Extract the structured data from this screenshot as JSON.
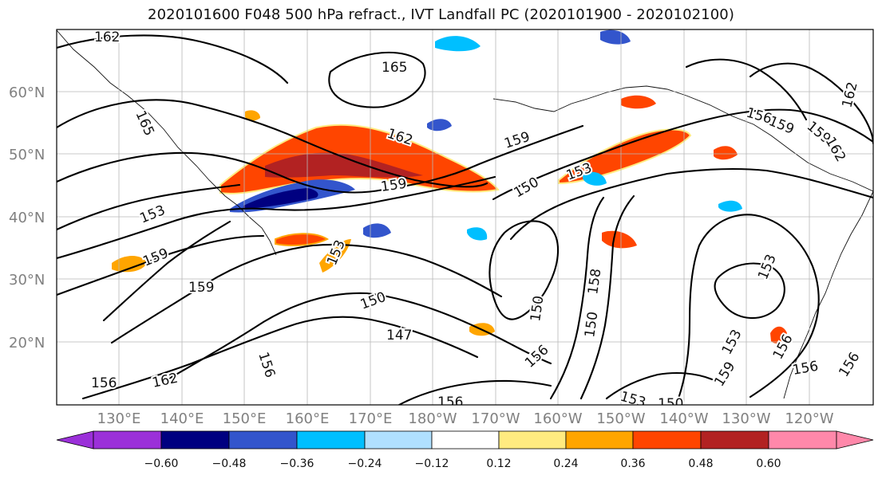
{
  "title": "2020101600 F048 500 hPa refract., IVT Landfall PC (2020101900 - 2020102100)",
  "map": {
    "lon_labels": [
      "130°E",
      "140°E",
      "150°E",
      "160°E",
      "170°E",
      "180°W",
      "170°W",
      "160°W",
      "150°W",
      "140°W",
      "130°W",
      "120°W"
    ],
    "lat_labels": [
      "60°N",
      "50°N",
      "40°N",
      "30°N",
      "20°N"
    ],
    "grid": true,
    "contour_labels": [
      "162",
      "165",
      "165",
      "162",
      "159",
      "153",
      "159",
      "150",
      "153",
      "156",
      "153",
      "159",
      "159",
      "159",
      "150",
      "150",
      "147",
      "156",
      "162",
      "156",
      "156",
      "156",
      "150",
      "158",
      "153",
      "150",
      "153",
      "153",
      "159",
      "156",
      "156",
      "156",
      "162",
      "159",
      "162"
    ]
  },
  "colorbar": {
    "ticks": [
      "−0.60",
      "−0.48",
      "−0.36",
      "−0.24",
      "−0.12",
      "0.12",
      "0.24",
      "0.36",
      "0.48",
      "0.60"
    ],
    "colors": [
      "#9b30d9",
      "#000080",
      "#3355cc",
      "#00bfff",
      "#b0e0ff",
      "#ffffff",
      "#ffeb80",
      "#ffa500",
      "#ff4500",
      "#b22222",
      "#ff88aa"
    ]
  }
}
